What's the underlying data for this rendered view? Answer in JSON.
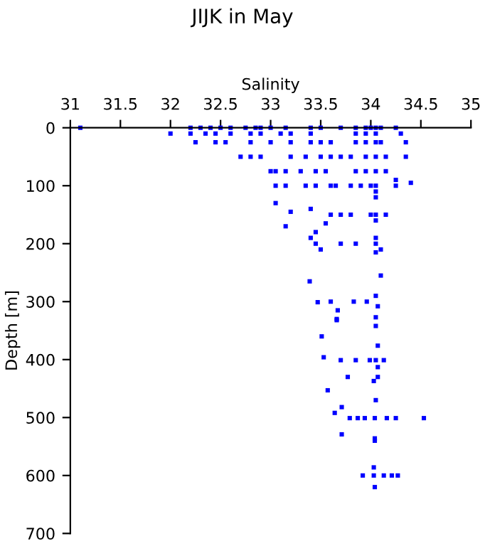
{
  "chart_data": {
    "type": "scatter",
    "title": "JIJK in May",
    "xlabel": "Salinity",
    "ylabel": "Depth [m]",
    "xlim": [
      31,
      35
    ],
    "xticks": [
      31,
      31.5,
      32,
      32.5,
      33,
      33.5,
      34,
      34.5,
      35
    ],
    "ylim": [
      700,
      0
    ],
    "yticks": [
      0,
      100,
      200,
      300,
      400,
      500,
      600,
      700
    ],
    "grid": false,
    "marker": "square",
    "series": [
      {
        "color": "#0000ff",
        "x": [
          31.1,
          32.2,
          32.3,
          32.4,
          32.5,
          32.6,
          32.75,
          32.85,
          32.9,
          33.0,
          33.15,
          33.4,
          33.5,
          33.7,
          33.85,
          33.95,
          34.0,
          34.05,
          34.1,
          34.25,
          32.0,
          32.2,
          32.35,
          32.45,
          32.6,
          32.8,
          32.9,
          33.1,
          33.2,
          33.4,
          33.85,
          33.95,
          34.05,
          34.3,
          32.25,
          32.45,
          32.55,
          32.8,
          33.0,
          33.2,
          33.4,
          33.5,
          33.6,
          33.85,
          33.95,
          34.05,
          34.1,
          34.35,
          32.7,
          32.8,
          32.9,
          33.2,
          33.35,
          33.5,
          33.6,
          33.7,
          33.8,
          33.95,
          34.05,
          34.15,
          34.35,
          33.0,
          33.05,
          33.15,
          33.3,
          33.45,
          33.55,
          33.85,
          33.95,
          34.05,
          34.15,
          33.05,
          33.15,
          33.35,
          33.45,
          33.6,
          33.65,
          33.8,
          33.9,
          34.0,
          34.05,
          34.25,
          34.4,
          34.25,
          34.05,
          34.05,
          33.05,
          33.4,
          33.2,
          33.6,
          33.7,
          33.8,
          34.0,
          34.05,
          34.15,
          34.05,
          33.15,
          33.55,
          33.45,
          33.4,
          34.05,
          33.45,
          33.7,
          33.85,
          34.05,
          33.5,
          34.1,
          34.05,
          34.1,
          33.39,
          33.47,
          33.6,
          33.67,
          33.66,
          33.83,
          33.96,
          34.05,
          34.07,
          33.66,
          34.05,
          34.05,
          33.51,
          34.07,
          33.53,
          33.7,
          33.85,
          33.99,
          34.05,
          34.13,
          34.07,
          33.77,
          34.07,
          34.03,
          33.57,
          34.05,
          33.71,
          33.64,
          33.79,
          33.87,
          33.94,
          34.04,
          34.16,
          34.25,
          34.53,
          34.04,
          34.04,
          33.71,
          34.03,
          33.92,
          34.03,
          34.13,
          34.21,
          34.27,
          34.04
        ],
        "values": [
          0,
          0,
          0,
          0,
          0,
          0,
          0,
          0,
          0,
          0,
          0,
          0,
          0,
          0,
          0,
          0,
          0,
          0,
          0,
          0,
          10,
          10,
          10,
          10,
          10,
          10,
          10,
          10,
          10,
          10,
          10,
          10,
          10,
          10,
          25,
          25,
          25,
          25,
          25,
          25,
          25,
          25,
          25,
          25,
          25,
          25,
          25,
          25,
          50,
          50,
          50,
          50,
          50,
          50,
          50,
          50,
          50,
          50,
          50,
          50,
          50,
          75,
          75,
          75,
          75,
          75,
          75,
          75,
          75,
          75,
          75,
          100,
          100,
          100,
          100,
          100,
          100,
          100,
          100,
          100,
          100,
          100,
          95,
          90,
          110,
          120,
          130,
          140,
          145,
          150,
          150,
          150,
          150,
          150,
          150,
          160,
          170,
          165,
          180,
          190,
          190,
          200,
          200,
          200,
          200,
          210,
          210,
          215,
          255,
          265,
          301,
          300,
          315,
          330,
          300,
          300,
          290,
          308,
          332,
          327,
          342,
          360,
          376,
          396,
          401,
          401,
          401,
          401,
          401,
          413,
          430,
          430,
          437,
          453,
          470,
          482,
          492,
          501,
          501,
          501,
          501,
          501,
          501,
          501,
          536,
          540,
          529,
          586,
          600,
          600,
          600,
          600,
          600,
          620
        ]
      }
    ]
  }
}
